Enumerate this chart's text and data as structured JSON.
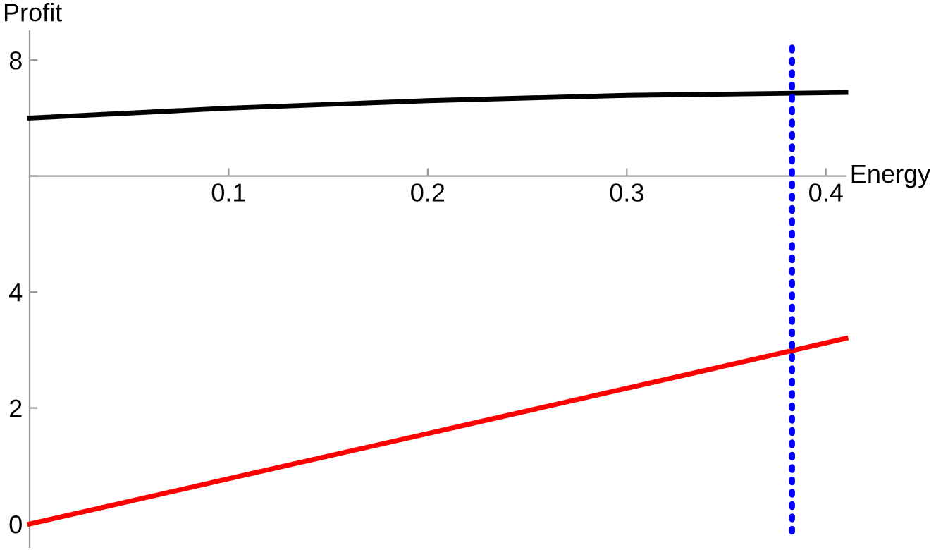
{
  "chart_data": {
    "type": "line",
    "xlabel": "Energy",
    "ylabel": "Profit",
    "x": [
      0,
      0.1,
      0.2,
      0.3,
      0.41
    ],
    "series": [
      {
        "color": "#000000",
        "values": [
          7.0,
          7.17,
          7.3,
          7.39,
          7.44
        ]
      },
      {
        "color": "#ff0000",
        "values": [
          0,
          0.78,
          1.56,
          2.34,
          3.2
        ]
      }
    ],
    "xlim": [
      0,
      0.41
    ],
    "ylim": [
      -0.4,
      8.5
    ],
    "xticks": [
      0.1,
      0.2,
      0.3,
      0.4
    ],
    "yticks": [
      0,
      2,
      4,
      {
        "value": 6,
        "label": null
      },
      8
    ],
    "ref_lines": [
      {
        "axis": "x",
        "value": 0.383,
        "color": "#0000ff",
        "line_style": "dotted"
      }
    ],
    "grid": false,
    "legend": false,
    "marker": "none",
    "line_style": "solid"
  }
}
